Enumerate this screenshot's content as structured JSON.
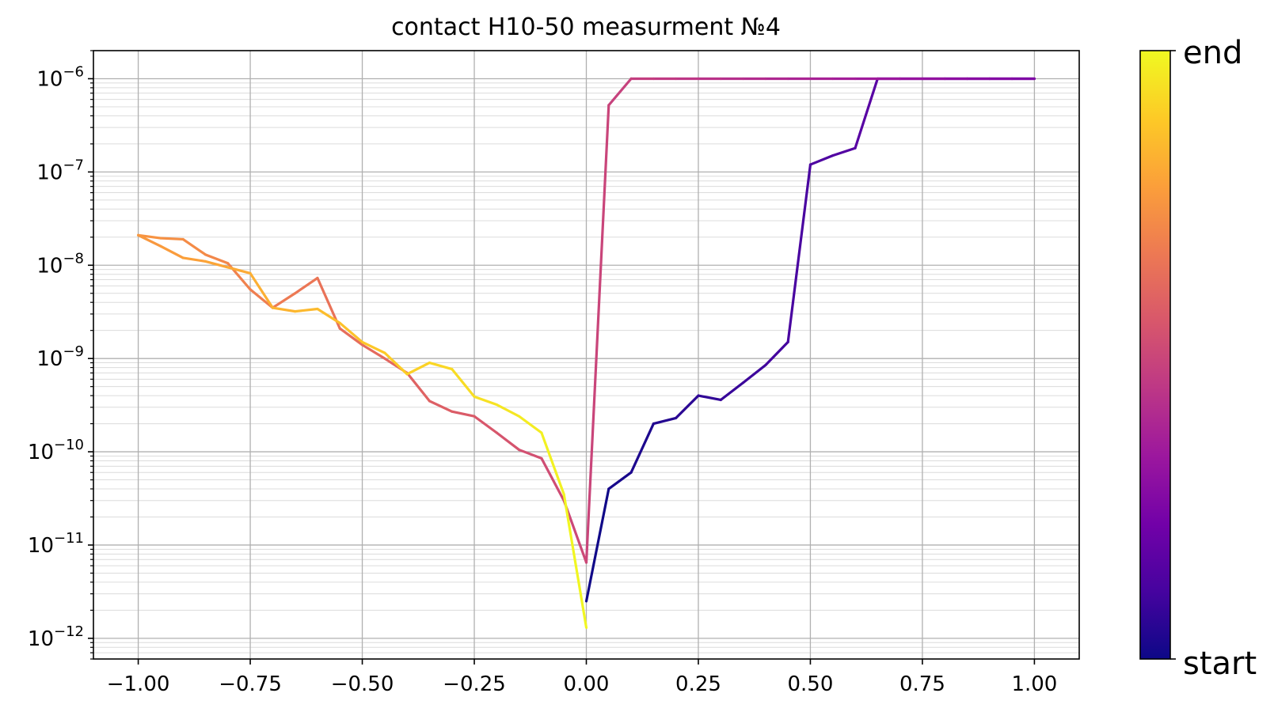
{
  "chart_data": {
    "type": "line",
    "title": "contact H10-50 measurment №4",
    "xlabel": "",
    "ylabel": "",
    "xlim": [
      -1.1,
      1.1
    ],
    "ylim": [
      6e-13,
      2e-06
    ],
    "yscale": "log",
    "grid": true,
    "x_ticks": [
      -1.0,
      -0.75,
      -0.5,
      -0.25,
      0.0,
      0.25,
      0.5,
      0.75,
      1.0
    ],
    "x_tick_labels": [
      "−1.00",
      "−0.75",
      "−0.50",
      "−0.25",
      "0.00",
      "0.25",
      "0.50",
      "0.75",
      "1.00"
    ],
    "y_ticks": [
      {
        "value": 1e-12,
        "base": "10",
        "exp": "−12"
      },
      {
        "value": 1e-11,
        "base": "10",
        "exp": "−11"
      },
      {
        "value": 1e-10,
        "base": "10",
        "exp": "−10"
      },
      {
        "value": 1e-09,
        "base": "10",
        "exp": "−9"
      },
      {
        "value": 1e-08,
        "base": "10",
        "exp": "−8"
      },
      {
        "value": 1e-07,
        "base": "10",
        "exp": "−7"
      },
      {
        "value": 1e-06,
        "base": "10",
        "exp": "−6"
      }
    ],
    "colormap": "plasma",
    "colorbar": {
      "top_label": "end",
      "bottom_label": "start"
    },
    "colormap_stops": [
      "#0d0887",
      "#46039f",
      "#7201a8",
      "#9c179e",
      "#bd3786",
      "#d8576b",
      "#ed7953",
      "#fb9f3a",
      "#fdca26",
      "#f0f921"
    ],
    "series": [
      {
        "x": [
          0.0,
          0.05,
          0.1,
          0.15,
          0.2,
          0.25,
          0.3,
          0.35,
          0.4,
          0.45,
          0.5,
          0.55,
          0.6,
          0.65,
          0.7,
          0.75,
          0.8,
          0.85,
          0.9,
          0.95,
          1.0,
          0.95,
          0.9,
          0.85,
          0.8,
          0.75,
          0.7,
          0.65,
          0.6,
          0.55,
          0.5,
          0.45,
          0.4,
          0.35,
          0.3,
          0.25,
          0.2,
          0.15,
          0.1,
          0.05,
          0.0,
          -0.05,
          -0.1,
          -0.15,
          -0.2,
          -0.25,
          -0.3,
          -0.35,
          -0.4,
          -0.45,
          -0.5,
          -0.55,
          -0.6,
          -0.65,
          -0.7,
          -0.75,
          -0.8,
          -0.85,
          -0.9,
          -0.95,
          -1.0,
          -0.95,
          -0.9,
          -0.85,
          -0.8,
          -0.75,
          -0.7,
          -0.65,
          -0.6,
          -0.55,
          -0.5,
          -0.45,
          -0.4,
          -0.35,
          -0.3,
          -0.25,
          -0.2,
          -0.15,
          -0.1,
          -0.05,
          0.0
        ],
        "y": [
          2.5e-12,
          4e-11,
          6e-11,
          2e-10,
          2.3e-10,
          4e-10,
          3.6e-10,
          5.5e-10,
          8.5e-10,
          1.5e-09,
          1.2e-07,
          1.5e-07,
          1.8e-07,
          1e-06,
          1e-06,
          1e-06,
          1e-06,
          1e-06,
          1e-06,
          1e-06,
          1e-06,
          1e-06,
          1e-06,
          1e-06,
          1e-06,
          1e-06,
          1e-06,
          1e-06,
          1e-06,
          1e-06,
          1e-06,
          1e-06,
          1e-06,
          1e-06,
          1e-06,
          1e-06,
          1e-06,
          1e-06,
          1e-06,
          5.2e-07,
          6.5e-12,
          3e-11,
          8.5e-11,
          1.05e-10,
          1.6e-10,
          2.4e-10,
          2.7e-10,
          3.5e-10,
          7e-10,
          1e-09,
          1.4e-09,
          2.1e-09,
          7.3e-09,
          5e-09,
          3.5e-09,
          5.5e-09,
          1.05e-08,
          1.3e-08,
          1.9e-08,
          1.95e-08,
          2.1e-08,
          1.6e-08,
          1.2e-08,
          1.1e-08,
          9.5e-09,
          8.2e-09,
          3.5e-09,
          3.2e-09,
          3.4e-09,
          2.4e-09,
          1.5e-09,
          1.15e-09,
          6.8e-10,
          9e-10,
          7.7e-10,
          3.9e-10,
          3.2e-10,
          2.4e-10,
          1.6e-10,
          3.5e-11,
          1.3e-12
        ]
      }
    ]
  }
}
